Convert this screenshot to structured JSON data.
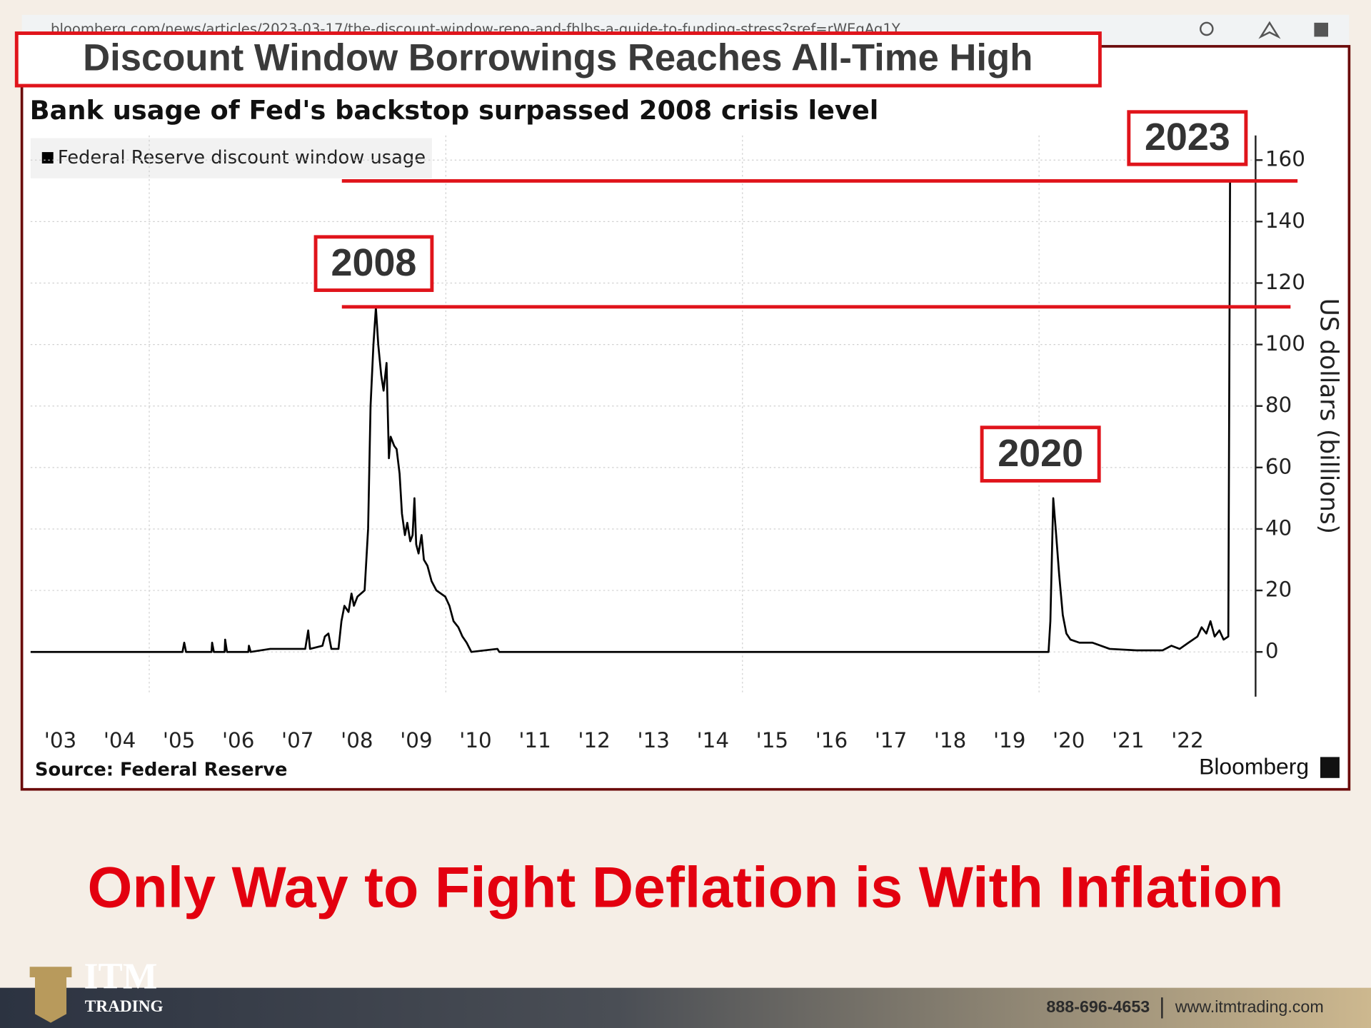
{
  "browser": {
    "url": "bloomberg.com/news/articles/2023-03-17/the-discount-window-repo-and-fhlbs-a-guide-to-funding-stress?sref=rWEgAq1Y"
  },
  "headline": "Discount Window Borrowings Reaches All-Time High",
  "chart_data": {
    "type": "line",
    "title": "Bank usage of Fed's backstop surpassed 2008 crisis level",
    "y_label": "US dollars (billions)",
    "source": "Source: Federal Reserve",
    "brand": "Bloomberg",
    "annotations": [
      "2023",
      "2008",
      "2020"
    ],
    "x": [
      2003.0,
      2005.56,
      2005.59,
      2005.62,
      2006.05,
      2006.06,
      2006.09,
      2006.27,
      2006.28,
      2006.31,
      2006.67,
      2006.68,
      2006.71,
      2007.04,
      2007.11,
      2007.63,
      2007.68,
      2007.71,
      2007.92,
      2007.96,
      2008.02,
      2008.07,
      2008.19,
      2008.24,
      2008.29,
      2008.36,
      2008.41,
      2008.45,
      2008.51,
      2008.63,
      2008.69,
      2008.73,
      2008.78,
      2008.82,
      2008.86,
      2008.91,
      2008.95,
      2009.0,
      2009.04,
      2009.07,
      2009.13,
      2009.17,
      2009.22,
      2009.26,
      2009.31,
      2009.35,
      2009.4,
      2009.44,
      2009.47,
      2009.5,
      2009.54,
      2009.59,
      2009.63,
      2009.69,
      2009.76,
      2009.84,
      2009.99,
      2010.06,
      2010.13,
      2010.21,
      2010.28,
      2010.35,
      2010.43,
      2010.87,
      2010.9,
      2020.16,
      2020.19,
      2020.24,
      2020.28,
      2020.34,
      2020.4,
      2020.46,
      2020.53,
      2020.68,
      2020.9,
      2021.19,
      2021.64,
      2022.08,
      2022.23,
      2022.37,
      2022.52,
      2022.67,
      2022.74,
      2022.82,
      2022.89,
      2022.96,
      2023.04,
      2023.11,
      2023.19,
      2023.22
    ],
    "series": [
      {
        "name": "Federal Reserve discount window usage",
        "color": "#000000",
        "values": [
          0,
          0,
          3,
          0,
          0,
          3,
          0,
          0,
          4,
          0,
          0,
          2,
          0,
          1,
          1,
          1,
          7,
          1,
          2,
          5,
          6,
          1,
          1,
          10,
          15,
          13,
          19,
          15,
          18,
          20,
          40,
          80,
          100,
          112,
          100,
          90,
          85,
          94,
          63,
          70,
          67,
          66,
          58,
          45,
          38,
          42,
          36,
          38,
          50,
          35,
          32,
          38,
          30,
          28,
          23,
          20,
          18,
          15,
          10,
          8,
          5,
          3,
          0,
          1,
          0,
          0,
          10,
          50,
          40,
          25,
          12,
          6,
          4,
          3,
          3,
          1,
          0.5,
          0.5,
          2,
          1,
          3,
          5,
          8,
          6,
          10,
          5,
          7,
          4,
          5,
          153
        ]
      }
    ],
    "xlim": [
      2003,
      2023.65
    ],
    "ylim": [
      -14,
      168
    ],
    "yticks": [
      0,
      20,
      40,
      60,
      80,
      100,
      120,
      140,
      160
    ],
    "xticks": [
      {
        "value": 2003,
        "label": "'03"
      },
      {
        "value": 2004,
        "label": "'04"
      },
      {
        "value": 2005,
        "label": "'05"
      },
      {
        "value": 2006,
        "label": "'06"
      },
      {
        "value": 2007,
        "label": "'07"
      },
      {
        "value": 2008,
        "label": "'08"
      },
      {
        "value": 2009,
        "label": "'09"
      },
      {
        "value": 2010,
        "label": "'10"
      },
      {
        "value": 2011,
        "label": "'11"
      },
      {
        "value": 2012,
        "label": "'12"
      },
      {
        "value": 2013,
        "label": "'13"
      },
      {
        "value": 2014,
        "label": "'14"
      },
      {
        "value": 2015,
        "label": "'15"
      },
      {
        "value": 2016,
        "label": "'16"
      },
      {
        "value": 2017,
        "label": "'17"
      },
      {
        "value": 2018,
        "label": "'18"
      },
      {
        "value": 2019,
        "label": "'19"
      },
      {
        "value": 2020,
        "label": "'20"
      },
      {
        "value": 2021,
        "label": "'21"
      },
      {
        "value": 2022,
        "label": "'22"
      }
    ],
    "xgrid": [
      2005,
      2010,
      2015,
      2020
    ],
    "grid": true
  },
  "caption": "Only Way to Fight Deflation is With Inflation",
  "footer": {
    "logo": "ITM",
    "logo_sub": "TRADING",
    "phone": "888-696-4653",
    "website": "www.itmtrading.com"
  }
}
